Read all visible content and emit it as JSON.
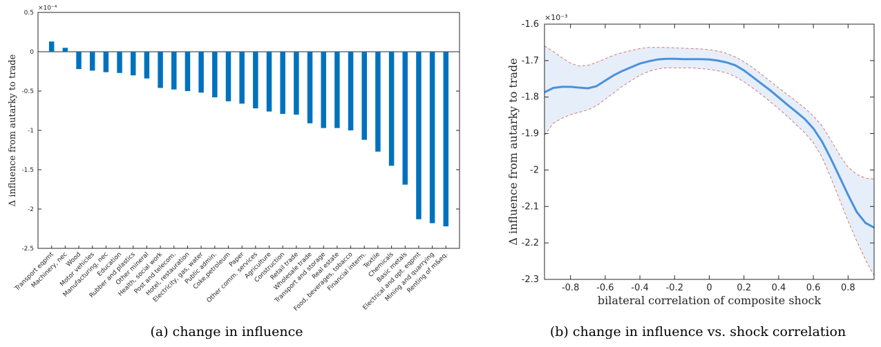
{
  "chart_data": [
    {
      "type": "bar",
      "title": "",
      "caption": "(a) change in influence",
      "ylabel": "Δ influence from autarky to trade",
      "xlabel": "",
      "exponent": "×10⁻⁴",
      "ylim": [
        -2.5,
        0.5
      ],
      "yticks": [
        0.5,
        0,
        -0.5,
        -1,
        -1.5,
        -2,
        -2.5
      ],
      "ytick_labels": [
        "0.5",
        "0",
        "-0.5",
        "-1",
        "-1.5",
        "-2",
        "-2.5"
      ],
      "grid": false,
      "bar_color": "#0072BD",
      "categories": [
        "Transport eqpmt",
        "Machinery, nec",
        "Wood",
        "Motor vehicles",
        "Manufacturing, nec",
        "Education",
        "Rubber and plastics",
        "Other mineral",
        "Health, social work",
        "Post and telecom.",
        "Hotel, restauration",
        "Electricity, gas, water",
        "Public admin.",
        "Coke,petroleum",
        "Paper",
        "Other comm. services",
        "Agriculture",
        "Construction",
        "Retail trade",
        "Wholesale trade",
        "Transport and storage",
        "Real estate",
        "Food, beverages, tobacco",
        "Financial interm.",
        "Textile",
        "Chemicals",
        "Basic metals",
        "Electrical and opt. eqpmt",
        "Mining and quarrying",
        "Renting of m&eq."
      ],
      "values": [
        0.13,
        0.05,
        -0.22,
        -0.24,
        -0.26,
        -0.27,
        -0.3,
        -0.34,
        -0.46,
        -0.48,
        -0.5,
        -0.52,
        -0.58,
        -0.63,
        -0.66,
        -0.72,
        -0.76,
        -0.79,
        -0.8,
        -0.91,
        -0.97,
        -0.97,
        -1.0,
        -1.12,
        -1.27,
        -1.45,
        -1.69,
        -2.13,
        -2.18,
        -2.22
      ]
    },
    {
      "type": "line",
      "title": "",
      "caption": "(b) change in influence vs. shock correlation",
      "xlabel": "bilateral correlation of composite shock",
      "ylabel": "Δ influence from autarky to trade",
      "exponent": "×10⁻³",
      "xlim": [
        -0.95,
        0.95
      ],
      "ylim": [
        -2.3,
        -1.6
      ],
      "xticks": [
        -0.8,
        -0.6,
        -0.4,
        -0.2,
        0,
        0.2,
        0.4,
        0.6,
        0.8
      ],
      "xtick_labels": [
        "-0.8",
        "-0.6",
        "-0.4",
        "-0.2",
        "0",
        "0.2",
        "0.4",
        "0.6",
        "0.8"
      ],
      "yticks": [
        -1.6,
        -1.7,
        -1.8,
        -1.9,
        -2,
        -2.1,
        -2.2,
        -2.3
      ],
      "ytick_labels": [
        "-1.6",
        "-1.7",
        "-1.8",
        "-1.9",
        "-2",
        "-2.1",
        "-2.2",
        "-2.3"
      ],
      "grid": false,
      "line_color": "#4A90D9",
      "band_color": "#E6EEFA",
      "bound_color": "#D9776A",
      "x": [
        -0.95,
        -0.9,
        -0.85,
        -0.8,
        -0.75,
        -0.7,
        -0.65,
        -0.6,
        -0.55,
        -0.5,
        -0.45,
        -0.4,
        -0.35,
        -0.3,
        -0.25,
        -0.2,
        -0.15,
        -0.1,
        -0.05,
        0,
        0.05,
        0.1,
        0.15,
        0.2,
        0.25,
        0.3,
        0.35,
        0.4,
        0.45,
        0.5,
        0.55,
        0.6,
        0.65,
        0.7,
        0.75,
        0.8,
        0.85,
        0.9,
        0.95
      ],
      "series": [
        {
          "role": "estimate",
          "values": [
            -1.787,
            -1.775,
            -1.772,
            -1.772,
            -1.774,
            -1.776,
            -1.77,
            -1.755,
            -1.74,
            -1.728,
            -1.718,
            -1.708,
            -1.702,
            -1.697,
            -1.695,
            -1.695,
            -1.696,
            -1.696,
            -1.696,
            -1.697,
            -1.7,
            -1.705,
            -1.713,
            -1.727,
            -1.745,
            -1.763,
            -1.781,
            -1.801,
            -1.821,
            -1.84,
            -1.86,
            -1.886,
            -1.922,
            -1.968,
            -2.018,
            -2.068,
            -2.115,
            -2.145,
            -2.158
          ]
        },
        {
          "role": "upper",
          "values": [
            -1.66,
            -1.675,
            -1.692,
            -1.707,
            -1.715,
            -1.713,
            -1.705,
            -1.695,
            -1.685,
            -1.678,
            -1.672,
            -1.667,
            -1.664,
            -1.664,
            -1.664,
            -1.665,
            -1.666,
            -1.667,
            -1.668,
            -1.67,
            -1.674,
            -1.68,
            -1.69,
            -1.703,
            -1.719,
            -1.737,
            -1.756,
            -1.775,
            -1.793,
            -1.811,
            -1.83,
            -1.852,
            -1.879,
            -1.917,
            -1.958,
            -1.992,
            -2.012,
            -2.022,
            -2.025
          ]
        },
        {
          "role": "lower",
          "values": [
            -1.905,
            -1.872,
            -1.858,
            -1.848,
            -1.842,
            -1.835,
            -1.824,
            -1.806,
            -1.788,
            -1.77,
            -1.755,
            -1.74,
            -1.73,
            -1.723,
            -1.72,
            -1.72,
            -1.72,
            -1.72,
            -1.722,
            -1.724,
            -1.728,
            -1.734,
            -1.744,
            -1.758,
            -1.775,
            -1.793,
            -1.812,
            -1.832,
            -1.853,
            -1.875,
            -1.898,
            -1.925,
            -1.965,
            -2.02,
            -2.08,
            -2.14,
            -2.195,
            -2.245,
            -2.29
          ]
        }
      ]
    }
  ]
}
